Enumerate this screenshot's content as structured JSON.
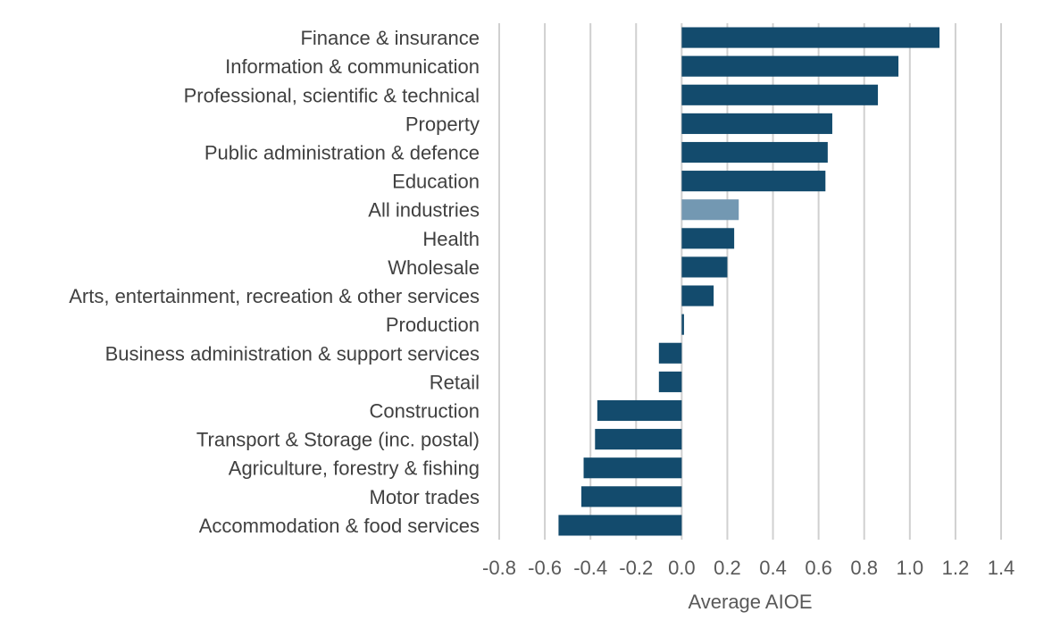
{
  "chart_data": {
    "type": "bar",
    "orientation": "horizontal",
    "title": "",
    "xlabel": "Average AIOE",
    "ylabel": "",
    "xlim": [
      -0.8,
      1.4
    ],
    "xticks": [
      "-0.8",
      "-0.6",
      "-0.4",
      "-0.2",
      "0.0",
      "0.2",
      "0.4",
      "0.6",
      "0.8",
      "1.0",
      "1.2",
      "1.4"
    ],
    "grid": true,
    "legend": "none",
    "categories": [
      "Finance & insurance",
      "Information & communication",
      "Professional, scientific & technical",
      "Property",
      "Public administration & defence",
      "Education",
      "All industries",
      "Health",
      "Wholesale",
      "Arts, entertainment, recreation & other services",
      "Production",
      "Business administration & support services",
      "Retail",
      "Construction",
      "Transport & Storage (inc. postal)",
      "Agriculture, forestry & fishing",
      "Motor trades",
      "Accommodation & food services"
    ],
    "values": [
      1.13,
      0.95,
      0.86,
      0.66,
      0.64,
      0.63,
      0.25,
      0.23,
      0.2,
      0.14,
      0.01,
      -0.1,
      -0.1,
      -0.37,
      -0.38,
      -0.43,
      -0.44,
      -0.54
    ],
    "highlight_category": "All industries",
    "colors": {
      "bar": "#134b6d",
      "highlight": "#7398b2",
      "grid": "#d0d0d0",
      "label": "#404040",
      "tick": "#595959"
    }
  }
}
